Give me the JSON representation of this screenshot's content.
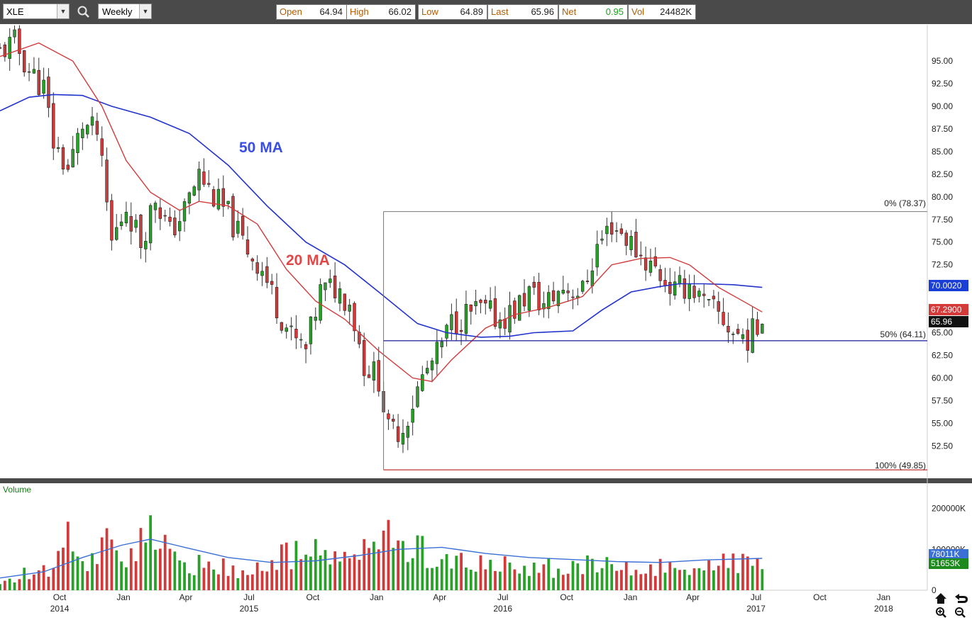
{
  "toolbar": {
    "symbol": "XLE",
    "period": "Weekly",
    "quote": [
      {
        "label": "Open",
        "value": "64.94"
      },
      {
        "label": "High",
        "value": "66.02"
      },
      {
        "label": "Low",
        "value": "64.89"
      },
      {
        "label": "Last",
        "value": "65.96"
      },
      {
        "label": "Net",
        "value": "0.95"
      },
      {
        "label": "Vol",
        "value": "24482K"
      }
    ]
  },
  "colors": {
    "up": "#27a127",
    "down": "#d13a3a",
    "ma20": "#d23a3a",
    "ma50": "#2233cc",
    "fib_line": "#1a1a9a",
    "volume_avg": "#3a6fd6",
    "toolbar_bg": "#4a4a4a"
  },
  "chart_data": [
    {
      "type": "candlestick",
      "title": "",
      "symbol": "XLE",
      "interval": "Weekly",
      "ylim": [
        49.0,
        99.0
      ],
      "y_ticks": [
        52.5,
        55.0,
        57.5,
        60.0,
        62.5,
        65.0,
        67.5,
        70.0,
        72.5,
        75.0,
        77.5,
        80.0,
        82.5,
        85.0,
        87.5,
        90.0,
        92.5,
        95.0
      ],
      "y_tick_labels": [
        "52.50",
        "55.00",
        "57.50",
        "60.00",
        "62.50",
        "65.00",
        "67.50",
        "70.00",
        "72.50",
        "75.00",
        "77.50",
        "80.00",
        "82.50",
        "85.00",
        "87.50",
        "90.00",
        "92.50",
        "95.00"
      ],
      "x_range": [
        "2014-07-07",
        "2018-03-05"
      ],
      "x_ticks": [
        {
          "date": "2014-10-01",
          "label": "Oct",
          "year": "2014"
        },
        {
          "date": "2015-01-01",
          "label": "Jan",
          "year": ""
        },
        {
          "date": "2015-04-01",
          "label": "Apr",
          "year": ""
        },
        {
          "date": "2015-07-01",
          "label": "Jul",
          "year": "2015"
        },
        {
          "date": "2015-10-01",
          "label": "Oct",
          "year": ""
        },
        {
          "date": "2016-01-01",
          "label": "Jan",
          "year": ""
        },
        {
          "date": "2016-04-01",
          "label": "Apr",
          "year": ""
        },
        {
          "date": "2016-07-01",
          "label": "Jul",
          "year": "2016"
        },
        {
          "date": "2016-10-01",
          "label": "Oct",
          "year": ""
        },
        {
          "date": "2017-01-01",
          "label": "Jan",
          "year": ""
        },
        {
          "date": "2017-04-01",
          "label": "Apr",
          "year": ""
        },
        {
          "date": "2017-07-01",
          "label": "Jul",
          "year": "2017"
        },
        {
          "date": "2017-10-01",
          "label": "Oct",
          "year": ""
        },
        {
          "date": "2018-01-01",
          "label": "Jan",
          "year": "2018"
        }
      ],
      "anchors": [
        [
          "2014-07-07",
          96.0
        ],
        [
          "2014-07-28",
          97.0
        ],
        [
          "2014-08-18",
          94.0
        ],
        [
          "2014-09-08",
          92.0
        ],
        [
          "2014-09-22",
          86.0
        ],
        [
          "2014-10-13",
          83.0
        ],
        [
          "2014-11-03",
          88.0
        ],
        [
          "2014-11-24",
          87.0
        ],
        [
          "2014-12-15",
          75.0
        ],
        [
          "2015-01-05",
          79.0
        ],
        [
          "2015-01-26",
          75.0
        ],
        [
          "2015-02-16",
          80.0
        ],
        [
          "2015-03-09",
          76.0
        ],
        [
          "2015-03-30",
          78.5
        ],
        [
          "2015-04-20",
          82.5
        ],
        [
          "2015-05-11",
          80.0
        ],
        [
          "2015-06-01",
          78.0
        ],
        [
          "2015-06-22",
          75.0
        ],
        [
          "2015-07-20",
          72.0
        ],
        [
          "2015-08-10",
          68.0
        ],
        [
          "2015-08-31",
          64.5
        ],
        [
          "2015-09-21",
          63.0
        ],
        [
          "2015-10-12",
          69.5
        ],
        [
          "2015-11-02",
          70.0
        ],
        [
          "2015-11-23",
          68.5
        ],
        [
          "2015-12-14",
          61.5
        ],
        [
          "2016-01-04",
          60.0
        ],
        [
          "2016-01-18",
          54.0
        ],
        [
          "2016-02-08",
          54.5
        ],
        [
          "2016-03-07",
          60.0
        ],
        [
          "2016-03-28",
          62.5
        ],
        [
          "2016-04-18",
          66.0
        ],
        [
          "2016-05-09",
          67.0
        ],
        [
          "2016-05-30",
          67.5
        ],
        [
          "2016-06-27",
          66.5
        ],
        [
          "2016-07-18",
          67.5
        ],
        [
          "2016-08-08",
          69.5
        ],
        [
          "2016-08-29",
          68.0
        ],
        [
          "2016-09-26",
          70.0
        ],
        [
          "2016-10-24",
          69.5
        ],
        [
          "2016-11-14",
          74.5
        ],
        [
          "2016-12-05",
          77.0
        ],
        [
          "2016-12-26",
          75.5
        ],
        [
          "2017-01-16",
          73.5
        ],
        [
          "2017-02-06",
          72.0
        ],
        [
          "2017-03-06",
          69.5
        ],
        [
          "2017-03-27",
          70.5
        ],
        [
          "2017-04-17",
          68.0
        ],
        [
          "2017-05-08",
          67.0
        ],
        [
          "2017-05-29",
          65.0
        ],
        [
          "2017-06-19",
          64.5
        ],
        [
          "2017-07-10",
          65.96
        ]
      ],
      "moving_averages": [
        {
          "name": "20 MA",
          "label": "20 MA",
          "value_label": "67.2900",
          "last_value": 67.29
        },
        {
          "name": "50 MA",
          "label": "50 MA",
          "value_label": "70.0020",
          "last_value": 70.002
        }
      ],
      "last_price_label": "65.96",
      "ma20_points": [
        [
          "2014-07-07",
          95.5
        ],
        [
          "2014-09-01",
          97.0
        ],
        [
          "2014-10-20",
          95.0
        ],
        [
          "2014-12-01",
          90.0
        ],
        [
          "2015-01-05",
          84.0
        ],
        [
          "2015-02-09",
          80.5
        ],
        [
          "2015-03-23",
          78.5
        ],
        [
          "2015-04-20",
          79.5
        ],
        [
          "2015-06-01",
          79.0
        ],
        [
          "2015-07-13",
          77.0
        ],
        [
          "2015-08-24",
          72.0
        ],
        [
          "2015-10-05",
          68.5
        ],
        [
          "2015-11-16",
          66.5
        ],
        [
          "2016-01-04",
          63.0
        ],
        [
          "2016-02-22",
          60.0
        ],
        [
          "2016-03-21",
          59.6
        ],
        [
          "2016-04-18",
          62.0
        ],
        [
          "2016-06-06",
          65.5
        ],
        [
          "2016-07-18",
          67.0
        ],
        [
          "2016-09-05",
          67.8
        ],
        [
          "2016-10-24",
          69.0
        ],
        [
          "2016-12-05",
          72.5
        ],
        [
          "2017-01-16",
          73.2
        ],
        [
          "2017-02-27",
          73.3
        ],
        [
          "2017-03-27",
          72.5
        ],
        [
          "2017-05-08",
          70.0
        ],
        [
          "2017-06-12",
          68.5
        ],
        [
          "2017-07-10",
          67.29
        ]
      ],
      "ma50_points": [
        [
          "2014-07-07",
          89.5
        ],
        [
          "2014-08-18",
          91.0
        ],
        [
          "2014-09-22",
          91.3
        ],
        [
          "2014-11-03",
          91.2
        ],
        [
          "2014-12-15",
          90.0
        ],
        [
          "2015-02-09",
          88.8
        ],
        [
          "2015-04-06",
          87.0
        ],
        [
          "2015-06-01",
          83.5
        ],
        [
          "2015-07-27",
          79.0
        ],
        [
          "2015-09-21",
          75.0
        ],
        [
          "2015-11-16",
          72.5
        ],
        [
          "2016-01-04",
          69.5
        ],
        [
          "2016-02-29",
          66.0
        ],
        [
          "2016-04-11",
          65.0
        ],
        [
          "2016-05-30",
          64.5
        ],
        [
          "2016-07-11",
          64.6
        ],
        [
          "2016-08-15",
          65.0
        ],
        [
          "2016-10-10",
          65.2
        ],
        [
          "2016-11-21",
          67.5
        ],
        [
          "2017-01-02",
          69.5
        ],
        [
          "2017-02-13",
          70.1
        ],
        [
          "2017-03-13",
          70.4
        ],
        [
          "2017-04-17",
          70.4
        ],
        [
          "2017-05-29",
          70.3
        ],
        [
          "2017-07-10",
          70.002
        ]
      ],
      "fibonacci": {
        "start_date": "2016-01-11",
        "end_date": "2018-03-05",
        "levels": [
          {
            "label": "0% (78.37)",
            "value": 78.37
          },
          {
            "label": "50% (64.11)",
            "value": 64.11
          },
          {
            "label": "100% (49.85)",
            "value": 49.85
          }
        ]
      }
    },
    {
      "type": "bar",
      "title": "Volume",
      "ylim": [
        0,
        260000
      ],
      "y_ticks": [
        0,
        100000,
        200000
      ],
      "y_tick_labels": [
        "0",
        "100000K",
        "200000K"
      ],
      "average_label": "78011K",
      "average_value": 78011,
      "last_label": "51653K",
      "last_value": 51653,
      "anchors": [
        [
          "2014-07-07",
          25000
        ],
        [
          "2014-08-25",
          45000
        ],
        [
          "2014-09-29",
          70000
        ],
        [
          "2014-10-13",
          130000
        ],
        [
          "2014-11-10",
          70000
        ],
        [
          "2014-12-08",
          120000
        ],
        [
          "2015-01-05",
          90000
        ],
        [
          "2015-02-09",
          130000
        ],
        [
          "2015-03-16",
          70000
        ],
        [
          "2015-04-27",
          60000
        ],
        [
          "2015-06-01",
          55000
        ],
        [
          "2015-07-06",
          45000
        ],
        [
          "2015-08-17",
          80000
        ],
        [
          "2015-09-21",
          95000
        ],
        [
          "2015-10-26",
          75000
        ],
        [
          "2015-12-07",
          90000
        ],
        [
          "2016-01-18",
          125000
        ],
        [
          "2016-02-22",
          110000
        ],
        [
          "2016-03-21",
          85000
        ],
        [
          "2016-05-02",
          65000
        ],
        [
          "2016-06-13",
          60000
        ],
        [
          "2016-07-25",
          55000
        ],
        [
          "2016-09-19",
          55000
        ],
        [
          "2016-11-14",
          60000
        ],
        [
          "2017-01-09",
          45000
        ],
        [
          "2017-02-27",
          60000
        ],
        [
          "2017-04-24",
          55000
        ],
        [
          "2017-06-12",
          75000
        ],
        [
          "2017-07-10",
          51653
        ]
      ],
      "avg_points": [
        [
          "2014-07-07",
          30000
        ],
        [
          "2014-09-08",
          45000
        ],
        [
          "2014-11-03",
          80000
        ],
        [
          "2014-12-29",
          110000
        ],
        [
          "2015-02-09",
          125000
        ],
        [
          "2015-03-30",
          105000
        ],
        [
          "2015-06-01",
          80000
        ],
        [
          "2015-08-03",
          68000
        ],
        [
          "2015-10-05",
          72000
        ],
        [
          "2015-12-07",
          85000
        ],
        [
          "2016-02-01",
          100000
        ],
        [
          "2016-04-04",
          105000
        ],
        [
          "2016-06-06",
          90000
        ],
        [
          "2016-08-08",
          80000
        ],
        [
          "2016-10-10",
          75000
        ],
        [
          "2016-12-12",
          70000
        ],
        [
          "2017-02-13",
          68000
        ],
        [
          "2017-04-17",
          74000
        ],
        [
          "2017-07-10",
          78011
        ]
      ]
    }
  ],
  "nav": {
    "home": "home-icon",
    "undo": "undo-icon",
    "zoom_in": "zoom-in-icon",
    "zoom_out": "zoom-out-icon"
  }
}
